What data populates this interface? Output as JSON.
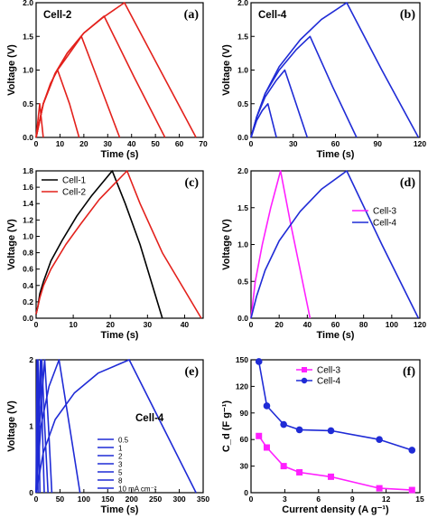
{
  "colors": {
    "red": "#e3211c",
    "blue": "#1f2bd6",
    "black": "#000000",
    "magenta": "#ff1fff"
  },
  "chart_data": [
    {
      "id": "a",
      "type": "line",
      "panel_label": "(a)",
      "title": "Cell-2",
      "xlabel": "Time (s)",
      "ylabel": "Voltage (V)",
      "xlim": [
        0,
        70
      ],
      "ylim": [
        0,
        2.0
      ],
      "xticks": [
        0,
        10,
        20,
        30,
        40,
        50,
        60,
        70
      ],
      "yticks": [
        0.0,
        0.5,
        1.0,
        1.5,
        2.0
      ],
      "series": [
        {
          "color": "red",
          "points": [
            [
              0,
              0
            ],
            [
              1.5,
              0.5
            ],
            [
              3,
              0
            ]
          ]
        },
        {
          "color": "red",
          "points": [
            [
              0,
              0
            ],
            [
              3,
              0.5
            ],
            [
              6,
              0.8
            ],
            [
              9,
              1.0
            ],
            [
              14,
              0.5
            ],
            [
              18,
              0
            ]
          ]
        },
        {
          "color": "red",
          "points": [
            [
              0,
              0
            ],
            [
              3,
              0.5
            ],
            [
              8,
              0.95
            ],
            [
              13,
              1.2
            ],
            [
              19,
              1.5
            ],
            [
              27,
              0.75
            ],
            [
              35,
              0
            ]
          ]
        },
        {
          "color": "red",
          "points": [
            [
              0,
              0
            ],
            [
              3,
              0.5
            ],
            [
              8,
              0.95
            ],
            [
              13,
              1.25
            ],
            [
              20,
              1.55
            ],
            [
              28.5,
              1.8
            ],
            [
              41,
              0.9
            ],
            [
              54,
              0
            ]
          ]
        },
        {
          "color": "red",
          "points": [
            [
              0,
              0
            ],
            [
              3,
              0.5
            ],
            [
              8,
              0.95
            ],
            [
              13,
              1.25
            ],
            [
              20,
              1.55
            ],
            [
              28,
              1.78
            ],
            [
              37,
              2.0
            ],
            [
              52,
              1.0
            ],
            [
              67,
              0
            ]
          ]
        }
      ]
    },
    {
      "id": "b",
      "type": "line",
      "panel_label": "(b)",
      "title": "Cell-4",
      "xlabel": "Time (s)",
      "ylabel": "Voltage (V)",
      "xlim": [
        0,
        120
      ],
      "ylim": [
        0,
        2.0
      ],
      "xticks": [
        0,
        30,
        60,
        90,
        120
      ],
      "yticks": [
        0.0,
        0.5,
        1.0,
        1.5,
        2.0
      ],
      "series": [
        {
          "color": "blue",
          "points": [
            [
              0,
              0
            ],
            [
              4,
              0.25
            ],
            [
              8,
              0.4
            ],
            [
              12,
              0.5
            ],
            [
              15,
              0.25
            ],
            [
              18,
              0
            ]
          ]
        },
        {
          "color": "blue",
          "points": [
            [
              0,
              0
            ],
            [
              4,
              0.3
            ],
            [
              10,
              0.6
            ],
            [
              18,
              0.85
            ],
            [
              24,
              1.0
            ],
            [
              32,
              0.5
            ],
            [
              40,
              0
            ]
          ]
        },
        {
          "color": "blue",
          "points": [
            [
              0,
              0
            ],
            [
              4,
              0.3
            ],
            [
              10,
              0.65
            ],
            [
              20,
              1.0
            ],
            [
              32,
              1.3
            ],
            [
              42,
              1.5
            ],
            [
              58,
              0.75
            ],
            [
              75,
              0
            ]
          ]
        },
        {
          "color": "blue",
          "points": [
            [
              0,
              0
            ],
            [
              4,
              0.3
            ],
            [
              10,
              0.65
            ],
            [
              20,
              1.05
            ],
            [
              35,
              1.45
            ],
            [
              50,
              1.75
            ],
            [
              68,
              2.0
            ],
            [
              93,
              1.0
            ],
            [
              119,
              0
            ]
          ]
        }
      ]
    },
    {
      "id": "c",
      "type": "line",
      "panel_label": "(c)",
      "title": "",
      "xlabel": "Time (s)",
      "ylabel": "Voltage (V)",
      "xlim": [
        0,
        45
      ],
      "ylim": [
        0,
        1.8
      ],
      "xticks": [
        0,
        10,
        20,
        30,
        40
      ],
      "yticks": [
        0.0,
        0.2,
        0.4,
        0.6,
        0.8,
        1.0,
        1.2,
        1.4,
        1.6,
        1.8
      ],
      "legend": [
        "Cell-1",
        "Cell-2"
      ],
      "series": [
        {
          "name": "Cell-1",
          "color": "black",
          "points": [
            [
              0,
              0.05
            ],
            [
              0.5,
              0.15
            ],
            [
              1,
              0.3
            ],
            [
              2,
              0.45
            ],
            [
              4,
              0.7
            ],
            [
              7,
              0.95
            ],
            [
              11,
              1.25
            ],
            [
              15,
              1.5
            ],
            [
              20.5,
              1.8
            ],
            [
              24,
              1.4
            ],
            [
              28,
              0.9
            ],
            [
              34,
              0
            ]
          ]
        },
        {
          "name": "Cell-2",
          "color": "red",
          "points": [
            [
              0,
              0.05
            ],
            [
              0.5,
              0.15
            ],
            [
              1,
              0.25
            ],
            [
              2,
              0.4
            ],
            [
              4,
              0.6
            ],
            [
              8,
              0.9
            ],
            [
              12,
              1.15
            ],
            [
              17,
              1.45
            ],
            [
              24.5,
              1.8
            ],
            [
              28,
              1.4
            ],
            [
              34,
              0.8
            ],
            [
              44.5,
              0
            ]
          ]
        }
      ]
    },
    {
      "id": "d",
      "type": "line",
      "panel_label": "(d)",
      "title": "",
      "xlabel": "Time (s)",
      "ylabel": "Voltage (V)",
      "xlim": [
        0,
        120
      ],
      "ylim": [
        0,
        2.0
      ],
      "xticks": [
        0,
        20,
        40,
        60,
        80,
        100,
        120
      ],
      "yticks": [
        0.0,
        0.5,
        1.0,
        1.5,
        2.0
      ],
      "legend": [
        "Cell-3",
        "Cell-4"
      ],
      "series": [
        {
          "name": "Cell-3",
          "color": "magenta",
          "points": [
            [
              0,
              0
            ],
            [
              3,
              0.5
            ],
            [
              8,
              1.0
            ],
            [
              14,
              1.5
            ],
            [
              21,
              2.0
            ],
            [
              28,
              1.3
            ],
            [
              35,
              0.65
            ],
            [
              42,
              0
            ]
          ]
        },
        {
          "name": "Cell-4",
          "color": "blue",
          "points": [
            [
              0,
              0
            ],
            [
              4,
              0.3
            ],
            [
              10,
              0.65
            ],
            [
              20,
              1.05
            ],
            [
              35,
              1.45
            ],
            [
              50,
              1.75
            ],
            [
              68,
              2.0
            ],
            [
              93,
              1.0
            ],
            [
              119,
              0
            ]
          ]
        }
      ]
    },
    {
      "id": "e",
      "type": "line",
      "panel_label": "(e)",
      "title": "Cell-4",
      "xlabel": "Time (s)",
      "ylabel": "Voltage (V)",
      "xlim": [
        0,
        350
      ],
      "ylim": [
        0,
        2.0
      ],
      "xticks": [
        0,
        50,
        100,
        150,
        200,
        250,
        300,
        350
      ],
      "yticks": [
        0,
        1,
        2
      ],
      "legend": [
        "0.5",
        "1",
        "2",
        "3",
        "5",
        "8",
        "10 mA cm⁻²"
      ],
      "series": [
        {
          "color": "blue",
          "points": [
            [
              0,
              0
            ],
            [
              1,
              1.0
            ],
            [
              2,
              2.0
            ],
            [
              3,
              1.0
            ],
            [
              4,
              0
            ]
          ]
        },
        {
          "color": "blue",
          "points": [
            [
              0,
              0
            ],
            [
              2,
              1.0
            ],
            [
              4,
              2.0
            ],
            [
              6,
              1.0
            ],
            [
              8,
              0
            ]
          ]
        },
        {
          "color": "blue",
          "points": [
            [
              0,
              0
            ],
            [
              4,
              1.0
            ],
            [
              9,
              2.0
            ],
            [
              13,
              1.0
            ],
            [
              17,
              0
            ]
          ]
        },
        {
          "color": "blue",
          "points": [
            [
              0,
              0
            ],
            [
              5,
              1.0
            ],
            [
              12,
              2.0
            ],
            [
              18,
              1.0
            ],
            [
              25,
              0
            ]
          ]
        },
        {
          "color": "blue",
          "points": [
            [
              0,
              0
            ],
            [
              7,
              1.0
            ],
            [
              18,
              2.0
            ],
            [
              26,
              1.0
            ],
            [
              33,
              0
            ]
          ]
        },
        {
          "color": "blue",
          "points": [
            [
              0,
              0
            ],
            [
              10,
              1.0
            ],
            [
              27,
              1.6
            ],
            [
              48,
              2.0
            ],
            [
              70,
              1.0
            ],
            [
              92,
              0
            ]
          ]
        },
        {
          "color": "blue",
          "points": [
            [
              0,
              0
            ],
            [
              15,
              0.6
            ],
            [
              40,
              1.1
            ],
            [
              80,
              1.5
            ],
            [
              130,
              1.8
            ],
            [
              195,
              2.0
            ],
            [
              265,
              1.0
            ],
            [
              335,
              0
            ]
          ]
        }
      ]
    },
    {
      "id": "f",
      "type": "line",
      "panel_label": "(f)",
      "title": "",
      "xlabel": "Current density (A g⁻¹)",
      "ylabel": "C_d (F g⁻¹)",
      "xlim": [
        0,
        15
      ],
      "ylim": [
        0,
        150
      ],
      "xticks": [
        0,
        3,
        6,
        9,
        12,
        15
      ],
      "yticks": [
        0,
        30,
        60,
        90,
        120,
        150
      ],
      "legend": [
        "Cell-3",
        "Cell-4"
      ],
      "series": [
        {
          "name": "Cell-3",
          "color": "magenta",
          "marker": "square",
          "points": [
            [
              0.7,
              64
            ],
            [
              1.4,
              51
            ],
            [
              2.9,
              30
            ],
            [
              4.3,
              23
            ],
            [
              7.1,
              18
            ],
            [
              11.4,
              5
            ],
            [
              14.3,
              3
            ]
          ]
        },
        {
          "name": "Cell-4",
          "color": "blue",
          "marker": "circle",
          "points": [
            [
              0.7,
              148
            ],
            [
              1.4,
              98
            ],
            [
              2.9,
              77
            ],
            [
              4.3,
              71
            ],
            [
              7.1,
              70
            ],
            [
              11.4,
              60
            ],
            [
              14.3,
              48
            ]
          ]
        }
      ]
    }
  ]
}
